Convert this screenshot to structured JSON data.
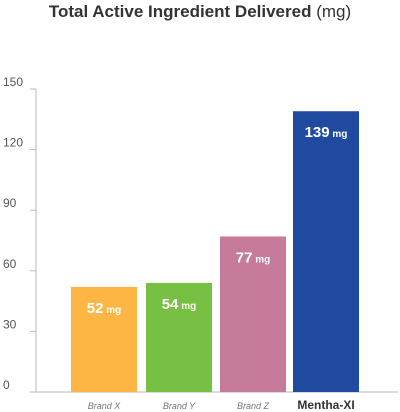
{
  "chart_data": {
    "type": "bar",
    "title": "Total Active Ingredient Delivered",
    "title_unit": "(mg)",
    "xlabel": "",
    "ylabel": "",
    "ylim": [
      0,
      150
    ],
    "yticks": [
      0,
      30,
      60,
      90,
      120,
      150
    ],
    "grid": false,
    "legend": "none",
    "categories": [
      "Brand X",
      "Brand Y",
      "Brand Z",
      "Mentha-XI"
    ],
    "highlight_category": "Mentha-XI",
    "values": [
      52,
      54,
      77,
      139
    ],
    "value_unit": "mg",
    "colors": [
      "#fdb643",
      "#77c043",
      "#c57b99",
      "#1f4a9f"
    ]
  }
}
